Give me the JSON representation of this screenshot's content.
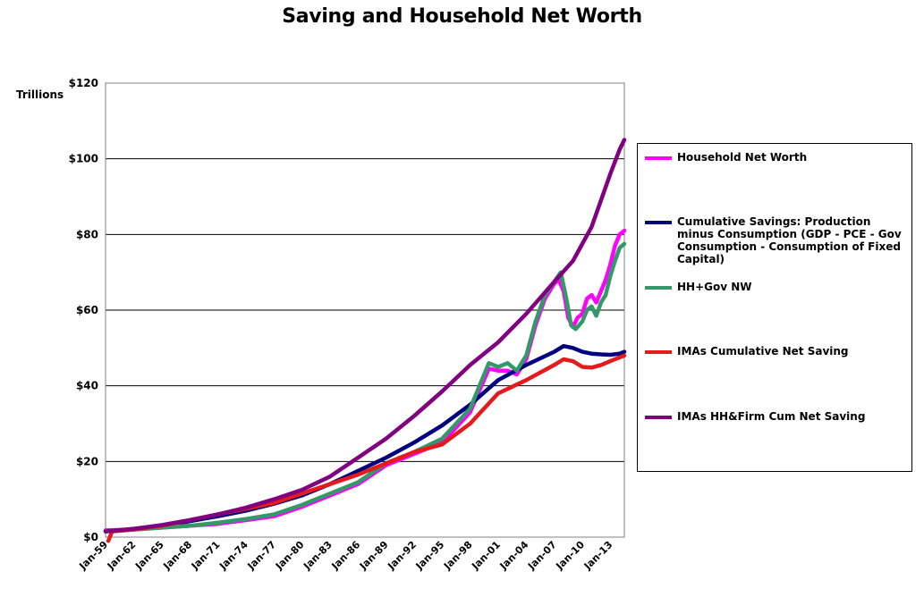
{
  "title": "Saving and Household Net Worth",
  "units": "Trillions",
  "chart_data": {
    "type": "line",
    "title": "Saving and Household Net Worth",
    "ylabel": "Trillions",
    "ylim": [
      0,
      120
    ],
    "yticks": [
      "$0",
      "$20",
      "$40",
      "$60",
      "$80",
      "$100",
      "$120"
    ],
    "xlim": [
      1959.0,
      2014.5
    ],
    "xticks": [
      "Jan-59",
      "Jan-62",
      "Jan-65",
      "Jan-68",
      "Jan-71",
      "Jan-74",
      "Jan-77",
      "Jan-80",
      "Jan-83",
      "Jan-86",
      "Jan-89",
      "Jan-92",
      "Jan-95",
      "Jan-98",
      "Jan-01",
      "Jan-04",
      "Jan-07",
      "Jan-10",
      "Jan-13"
    ],
    "grid": true,
    "legend": "right",
    "series": [
      {
        "name": "Household Net Worth",
        "color": "#ff00ff",
        "points": [
          [
            1959,
            1.8
          ],
          [
            1962,
            2.0
          ],
          [
            1965,
            2.5
          ],
          [
            1968,
            3.0
          ],
          [
            1971,
            3.5
          ],
          [
            1974,
            4.5
          ],
          [
            1977,
            5.5
          ],
          [
            1980,
            8.0
          ],
          [
            1983,
            11.0
          ],
          [
            1986,
            14.0
          ],
          [
            1989,
            19.0
          ],
          [
            1992,
            22.0
          ],
          [
            1995,
            25.0
          ],
          [
            1998,
            33.0
          ],
          [
            2000,
            44.5
          ],
          [
            2001,
            44.0
          ],
          [
            2002,
            44.0
          ],
          [
            2003,
            43.0
          ],
          [
            2004,
            47.0
          ],
          [
            2005,
            56.0
          ],
          [
            2006,
            63.0
          ],
          [
            2007,
            67.0
          ],
          [
            2007.5,
            68.0
          ],
          [
            2008,
            65.0
          ],
          [
            2008.5,
            58.0
          ],
          [
            2009,
            55.5
          ],
          [
            2009.5,
            58.0
          ],
          [
            2010,
            59.0
          ],
          [
            2010.5,
            63.0
          ],
          [
            2011,
            64.0
          ],
          [
            2011.5,
            62.0
          ],
          [
            2012,
            65.0
          ],
          [
            2012.5,
            68.0
          ],
          [
            2013,
            72.0
          ],
          [
            2013.5,
            77.0
          ],
          [
            2014,
            80.0
          ],
          [
            2014.5,
            81.0
          ]
        ]
      },
      {
        "name": "Cumulative Savings: Production minus Consumption (GDP - PCE - Gov Consumption - Consumption of Fixed Capital)",
        "color": "#000080",
        "points": [
          [
            1959,
            1.5
          ],
          [
            1962,
            2.2
          ],
          [
            1965,
            3.0
          ],
          [
            1968,
            4.2
          ],
          [
            1971,
            5.5
          ],
          [
            1974,
            7.0
          ],
          [
            1977,
            8.8
          ],
          [
            1980,
            11.0
          ],
          [
            1983,
            14.0
          ],
          [
            1986,
            17.5
          ],
          [
            1989,
            21.0
          ],
          [
            1992,
            25.0
          ],
          [
            1995,
            29.5
          ],
          [
            1998,
            35.0
          ],
          [
            2001,
            41.5
          ],
          [
            2004,
            45.5
          ],
          [
            2007,
            49.0
          ],
          [
            2008,
            50.5
          ],
          [
            2009,
            50.0
          ],
          [
            2010,
            49.0
          ],
          [
            2011,
            48.5
          ],
          [
            2012,
            48.3
          ],
          [
            2013,
            48.2
          ],
          [
            2014,
            48.5
          ],
          [
            2014.5,
            49.0
          ]
        ]
      },
      {
        "name": "HH+Gov NW",
        "color": "#339966",
        "points": [
          [
            1959,
            1.6
          ],
          [
            1962,
            2.0
          ],
          [
            1965,
            2.5
          ],
          [
            1968,
            3.0
          ],
          [
            1971,
            3.8
          ],
          [
            1974,
            4.8
          ],
          [
            1977,
            6.0
          ],
          [
            1980,
            8.5
          ],
          [
            1983,
            11.5
          ],
          [
            1986,
            14.5
          ],
          [
            1989,
            19.5
          ],
          [
            1992,
            22.5
          ],
          [
            1995,
            26.0
          ],
          [
            1998,
            34.0
          ],
          [
            1999,
            40.0
          ],
          [
            2000,
            46.0
          ],
          [
            2001,
            45.0
          ],
          [
            2002,
            46.0
          ],
          [
            2003,
            44.0
          ],
          [
            2004,
            48.0
          ],
          [
            2005,
            57.0
          ],
          [
            2006,
            64.0
          ],
          [
            2007,
            67.5
          ],
          [
            2007.7,
            70.0
          ],
          [
            2008.3,
            63.0
          ],
          [
            2008.8,
            56.0
          ],
          [
            2009.3,
            55.0
          ],
          [
            2010,
            57.0
          ],
          [
            2010.5,
            60.0
          ],
          [
            2011,
            61.0
          ],
          [
            2011.5,
            58.5
          ],
          [
            2012,
            62.0
          ],
          [
            2012.5,
            64.0
          ],
          [
            2013,
            69.0
          ],
          [
            2013.5,
            73.0
          ],
          [
            2014,
            76.5
          ],
          [
            2014.5,
            77.5
          ]
        ]
      },
      {
        "name": "IMAs Cumulative Net Saving",
        "color": "#e41a1c",
        "points": [
          [
            1959.3,
            -1.0
          ],
          [
            1959.7,
            1.5
          ],
          [
            1962,
            2.0
          ],
          [
            1965,
            3.0
          ],
          [
            1968,
            4.5
          ],
          [
            1971,
            6.0
          ],
          [
            1974,
            7.5
          ],
          [
            1977,
            9.0
          ],
          [
            1980,
            11.5
          ],
          [
            1983,
            14.0
          ],
          [
            1986,
            16.5
          ],
          [
            1989,
            19.5
          ],
          [
            1992,
            22.5
          ],
          [
            1995,
            24.5
          ],
          [
            1998,
            30.0
          ],
          [
            2001,
            38.0
          ],
          [
            2004,
            41.5
          ],
          [
            2007,
            45.5
          ],
          [
            2008,
            47.0
          ],
          [
            2009,
            46.5
          ],
          [
            2010,
            45.0
          ],
          [
            2011,
            44.8
          ],
          [
            2012,
            45.5
          ],
          [
            2013,
            46.5
          ],
          [
            2014,
            47.5
          ],
          [
            2014.5,
            48.0
          ]
        ]
      },
      {
        "name": "IMAs HH&Firm Cum Net Saving",
        "color": "#800080",
        "points": [
          [
            1959,
            1.5
          ],
          [
            1962,
            2.2
          ],
          [
            1965,
            3.2
          ],
          [
            1968,
            4.5
          ],
          [
            1971,
            6.0
          ],
          [
            1974,
            7.8
          ],
          [
            1977,
            10.0
          ],
          [
            1980,
            12.5
          ],
          [
            1983,
            16.0
          ],
          [
            1986,
            21.0
          ],
          [
            1989,
            26.0
          ],
          [
            1992,
            32.0
          ],
          [
            1995,
            38.5
          ],
          [
            1998,
            45.5
          ],
          [
            2001,
            51.5
          ],
          [
            2004,
            59.0
          ],
          [
            2007,
            67.5
          ],
          [
            2009,
            73.0
          ],
          [
            2011,
            82.0
          ],
          [
            2013,
            96.0
          ],
          [
            2014,
            102.5
          ],
          [
            2014.5,
            105.0
          ]
        ]
      }
    ]
  }
}
